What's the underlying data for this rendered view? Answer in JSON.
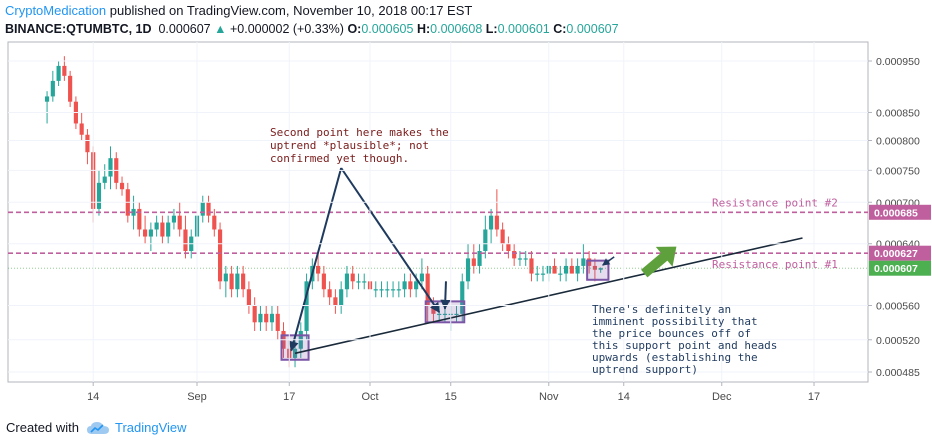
{
  "header": {
    "brand": "CryptoMedication",
    "published": "published on TradingView.com, November 10, 2018 00:17 EST",
    "symbol": "BINANCE:QTUMBTC, 1D",
    "last": "0.000607",
    "arrow": "▲",
    "change": "+0.000002 (+0.33%)",
    "o_label": "O:",
    "o_value": "0.000605",
    "h_label": "H:",
    "h_value": "0.000608",
    "l_label": "L:",
    "l_value": "0.000601",
    "c_label": "C:",
    "c_value": "0.000607"
  },
  "footer": {
    "created_with": "Created with",
    "brand": "TradingView",
    "icon": "tradingview-cloud-icon"
  },
  "colors": {
    "up": "#26a69a",
    "down": "#ef5350",
    "resistance": "#c05f9e",
    "box": "#7b55a6",
    "trend": "#1a2a3a",
    "pointer": "#1f3a5f",
    "arrow": "#5ea13c",
    "last_price": "#4caf50"
  },
  "chart_data": {
    "type": "candlestick",
    "y_ticks": [
      "0.000950",
      "0.000850",
      "0.000800",
      "0.000750",
      "0.000700",
      "0.000640",
      "0.000560",
      "0.000520",
      "0.000485"
    ],
    "y_tick_values": [
      0.00095,
      0.00085,
      0.0008,
      0.00075,
      0.0007,
      0.00064,
      0.00056,
      0.00052,
      0.000485
    ],
    "x_ticks": [
      "14",
      "Sep",
      "17",
      "Oct",
      "15",
      "Nov",
      "14",
      "Dec",
      "17"
    ],
    "x_tick_dates": [
      "2018-08-14",
      "2018-09-01",
      "2018-09-17",
      "2018-10-01",
      "2018-10-15",
      "2018-11-01",
      "2018-11-14",
      "2018-12-01",
      "2018-12-17"
    ],
    "price_labels": [
      {
        "text": "0.000685",
        "value": 0.000685,
        "color": "#c05f9e"
      },
      {
        "text": "0.000627",
        "value": 0.000627,
        "color": "#c05f9e"
      },
      {
        "text": "0.000607",
        "value": 0.000607,
        "color": "#4caf50"
      }
    ],
    "resistance_lines": [
      {
        "label": "Resistance point #2",
        "value": 0.000685
      },
      {
        "label": "Resistance point #1",
        "value": 0.000627
      }
    ],
    "annotations": {
      "second_point": [
        "Second point here makes the",
        "uptrend *plausible*; not",
        "confirmed yet though."
      ],
      "support_note": [
        "There's definitely an",
        "imminent possibility that",
        "the price bounces off of",
        "this support point and heads",
        "upwards (establishing the",
        "uptrend support)"
      ]
    },
    "trendline": {
      "from": {
        "date": "2018-09-18",
        "price": 0.000505
      },
      "to": {
        "date": "2018-12-15",
        "price": 0.000648
      }
    },
    "boxes": [
      {
        "from": "2018-09-16",
        "to": "2018-09-20",
        "low": 0.000498,
        "high": 0.000525
      },
      {
        "from": "2018-10-11",
        "to": "2018-10-17",
        "low": 0.00054,
        "high": 0.000565
      },
      {
        "from": "2018-11-08",
        "to": "2018-11-11",
        "low": 0.000592,
        "high": 0.000617
      }
    ],
    "series": [
      {
        "date": "2018-08-06",
        "open": 0.00087,
        "high": 0.00089,
        "low": 0.00083,
        "close": 0.00088
      },
      {
        "date": "2018-08-07",
        "open": 0.00088,
        "high": 0.00093,
        "low": 0.00087,
        "close": 0.00091
      },
      {
        "date": "2018-08-08",
        "open": 0.00091,
        "high": 0.00095,
        "low": 0.0009,
        "close": 0.00094
      },
      {
        "date": "2018-08-09",
        "open": 0.00094,
        "high": 0.00096,
        "low": 0.00091,
        "close": 0.00092
      },
      {
        "date": "2018-08-10",
        "open": 0.00092,
        "high": 0.00093,
        "low": 0.00086,
        "close": 0.00087
      },
      {
        "date": "2018-08-11",
        "open": 0.00087,
        "high": 0.00088,
        "low": 0.00082,
        "close": 0.00083
      },
      {
        "date": "2018-08-12",
        "open": 0.00083,
        "high": 0.00085,
        "low": 0.0008,
        "close": 0.00081
      },
      {
        "date": "2018-08-13",
        "open": 0.00081,
        "high": 0.00082,
        "low": 0.00076,
        "close": 0.00078
      },
      {
        "date": "2018-08-14",
        "open": 0.00078,
        "high": 0.00079,
        "low": 0.00067,
        "close": 0.00069
      },
      {
        "date": "2018-08-15",
        "open": 0.00069,
        "high": 0.00075,
        "low": 0.00068,
        "close": 0.00073
      },
      {
        "date": "2018-08-16",
        "open": 0.00073,
        "high": 0.00076,
        "low": 0.00072,
        "close": 0.00074
      },
      {
        "date": "2018-08-17",
        "open": 0.00074,
        "high": 0.00079,
        "low": 0.00072,
        "close": 0.00077
      },
      {
        "date": "2018-08-18",
        "open": 0.00077,
        "high": 0.00078,
        "low": 0.00072,
        "close": 0.00073
      },
      {
        "date": "2018-08-19",
        "open": 0.00073,
        "high": 0.00074,
        "low": 0.00071,
        "close": 0.00072
      },
      {
        "date": "2018-08-20",
        "open": 0.00072,
        "high": 0.00073,
        "low": 0.00067,
        "close": 0.00068
      },
      {
        "date": "2018-08-21",
        "open": 0.00068,
        "high": 0.00071,
        "low": 0.00066,
        "close": 0.00069
      },
      {
        "date": "2018-08-22",
        "open": 0.00069,
        "high": 0.0007,
        "low": 0.00065,
        "close": 0.00066
      },
      {
        "date": "2018-08-23",
        "open": 0.00066,
        "high": 0.00068,
        "low": 0.00064,
        "close": 0.00065
      },
      {
        "date": "2018-08-24",
        "open": 0.00065,
        "high": 0.00067,
        "low": 0.00063,
        "close": 0.00066
      },
      {
        "date": "2018-08-25",
        "open": 0.00066,
        "high": 0.00068,
        "low": 0.00065,
        "close": 0.00067
      },
      {
        "date": "2018-08-26",
        "open": 0.00067,
        "high": 0.00068,
        "low": 0.00064,
        "close": 0.00065
      },
      {
        "date": "2018-08-27",
        "open": 0.00065,
        "high": 0.00068,
        "low": 0.00064,
        "close": 0.00067
      },
      {
        "date": "2018-08-28",
        "open": 0.00067,
        "high": 0.00069,
        "low": 0.00066,
        "close": 0.00068
      },
      {
        "date": "2018-08-29",
        "open": 0.00068,
        "high": 0.0007,
        "low": 0.00065,
        "close": 0.00066
      },
      {
        "date": "2018-08-30",
        "open": 0.00066,
        "high": 0.00068,
        "low": 0.00062,
        "close": 0.00063
      },
      {
        "date": "2018-08-31",
        "open": 0.00063,
        "high": 0.00066,
        "low": 0.00062,
        "close": 0.00065
      },
      {
        "date": "2018-09-01",
        "open": 0.00065,
        "high": 0.0007,
        "low": 0.00064,
        "close": 0.00068
      },
      {
        "date": "2018-09-02",
        "open": 0.00068,
        "high": 0.00071,
        "low": 0.00067,
        "close": 0.0007
      },
      {
        "date": "2018-09-03",
        "open": 0.0007,
        "high": 0.00071,
        "low": 0.00067,
        "close": 0.00068
      },
      {
        "date": "2018-09-04",
        "open": 0.00068,
        "high": 0.00069,
        "low": 0.00065,
        "close": 0.00066
      },
      {
        "date": "2018-09-05",
        "open": 0.00066,
        "high": 0.00067,
        "low": 0.00058,
        "close": 0.00059
      },
      {
        "date": "2018-09-06",
        "open": 0.00059,
        "high": 0.00061,
        "low": 0.00057,
        "close": 0.0006
      },
      {
        "date": "2018-09-07",
        "open": 0.0006,
        "high": 0.00061,
        "low": 0.00057,
        "close": 0.00058
      },
      {
        "date": "2018-09-08",
        "open": 0.00058,
        "high": 0.00061,
        "low": 0.00057,
        "close": 0.0006
      },
      {
        "date": "2018-09-09",
        "open": 0.0006,
        "high": 0.00061,
        "low": 0.00057,
        "close": 0.00058
      },
      {
        "date": "2018-09-10",
        "open": 0.00058,
        "high": 0.00059,
        "low": 0.00055,
        "close": 0.00056
      },
      {
        "date": "2018-09-11",
        "open": 0.00056,
        "high": 0.00057,
        "low": 0.00053,
        "close": 0.00054
      },
      {
        "date": "2018-09-12",
        "open": 0.00054,
        "high": 0.00056,
        "low": 0.00053,
        "close": 0.00055
      },
      {
        "date": "2018-09-13",
        "open": 0.00055,
        "high": 0.00056,
        "low": 0.00053,
        "close": 0.00054
      },
      {
        "date": "2018-09-14",
        "open": 0.00054,
        "high": 0.00056,
        "low": 0.00053,
        "close": 0.00055
      },
      {
        "date": "2018-09-15",
        "open": 0.00055,
        "high": 0.00056,
        "low": 0.00052,
        "close": 0.00053
      },
      {
        "date": "2018-09-16",
        "open": 0.00053,
        "high": 0.00054,
        "low": 0.0005,
        "close": 0.00051
      },
      {
        "date": "2018-09-17",
        "open": 0.00051,
        "high": 0.00052,
        "low": 0.00049,
        "close": 0.0005
      },
      {
        "date": "2018-09-18",
        "open": 0.0005,
        "high": 0.00052,
        "low": 0.00049,
        "close": 0.00051
      },
      {
        "date": "2018-09-19",
        "open": 0.00051,
        "high": 0.00054,
        "low": 0.0005,
        "close": 0.00053
      },
      {
        "date": "2018-09-20",
        "open": 0.00053,
        "high": 0.0006,
        "low": 0.00052,
        "close": 0.00059
      },
      {
        "date": "2018-09-21",
        "open": 0.00059,
        "high": 0.00062,
        "low": 0.00058,
        "close": 0.00061
      },
      {
        "date": "2018-09-22",
        "open": 0.00061,
        "high": 0.00063,
        "low": 0.00059,
        "close": 0.0006
      },
      {
        "date": "2018-09-23",
        "open": 0.0006,
        "high": 0.00061,
        "low": 0.00057,
        "close": 0.00058
      },
      {
        "date": "2018-09-24",
        "open": 0.00058,
        "high": 0.00059,
        "low": 0.00056,
        "close": 0.00057
      },
      {
        "date": "2018-09-25",
        "open": 0.00057,
        "high": 0.00058,
        "low": 0.00055,
        "close": 0.00056
      },
      {
        "date": "2018-09-26",
        "open": 0.00056,
        "high": 0.00059,
        "low": 0.00055,
        "close": 0.00058
      },
      {
        "date": "2018-09-27",
        "open": 0.00058,
        "high": 0.00061,
        "low": 0.00057,
        "close": 0.0006
      },
      {
        "date": "2018-09-28",
        "open": 0.0006,
        "high": 0.00061,
        "low": 0.00058,
        "close": 0.00059
      },
      {
        "date": "2018-09-29",
        "open": 0.00059,
        "high": 0.0006,
        "low": 0.00058,
        "close": 0.00059
      },
      {
        "date": "2018-09-30",
        "open": 0.00059,
        "high": 0.0006,
        "low": 0.00058,
        "close": 0.00059
      },
      {
        "date": "2018-10-01",
        "open": 0.00059,
        "high": 0.0006,
        "low": 0.00058,
        "close": 0.00058
      },
      {
        "date": "2018-10-02",
        "open": 0.00058,
        "high": 0.00059,
        "low": 0.00057,
        "close": 0.00058
      },
      {
        "date": "2018-10-03",
        "open": 0.00058,
        "high": 0.00059,
        "low": 0.00057,
        "close": 0.00058
      },
      {
        "date": "2018-10-04",
        "open": 0.00058,
        "high": 0.00059,
        "low": 0.00057,
        "close": 0.00058
      },
      {
        "date": "2018-10-05",
        "open": 0.00058,
        "high": 0.00059,
        "low": 0.00057,
        "close": 0.00058
      },
      {
        "date": "2018-10-06",
        "open": 0.00058,
        "high": 0.00059,
        "low": 0.00057,
        "close": 0.00058
      },
      {
        "date": "2018-10-07",
        "open": 0.00058,
        "high": 0.0006,
        "low": 0.00057,
        "close": 0.00059
      },
      {
        "date": "2018-10-08",
        "open": 0.00059,
        "high": 0.0006,
        "low": 0.00057,
        "close": 0.00058
      },
      {
        "date": "2018-10-09",
        "open": 0.00058,
        "high": 0.0006,
        "low": 0.00057,
        "close": 0.00059
      },
      {
        "date": "2018-10-10",
        "open": 0.00059,
        "high": 0.00062,
        "low": 0.00058,
        "close": 0.0006
      },
      {
        "date": "2018-10-11",
        "open": 0.0006,
        "high": 0.00061,
        "low": 0.00054,
        "close": 0.00056
      },
      {
        "date": "2018-10-12",
        "open": 0.00056,
        "high": 0.00057,
        "low": 0.00054,
        "close": 0.00055
      },
      {
        "date": "2018-10-13",
        "open": 0.00055,
        "high": 0.00056,
        "low": 0.00054,
        "close": 0.00055
      },
      {
        "date": "2018-10-14",
        "open": 0.00055,
        "high": 0.00056,
        "low": 0.00054,
        "close": 0.00055
      },
      {
        "date": "2018-10-15",
        "open": 0.00055,
        "high": 0.00056,
        "low": 0.00053,
        "close": 0.00055
      },
      {
        "date": "2018-10-16",
        "open": 0.00055,
        "high": 0.00056,
        "low": 0.00054,
        "close": 0.00055
      },
      {
        "date": "2018-10-17",
        "open": 0.00055,
        "high": 0.0006,
        "low": 0.00054,
        "close": 0.00059
      },
      {
        "date": "2018-10-18",
        "open": 0.00059,
        "high": 0.00064,
        "low": 0.00058,
        "close": 0.00062
      },
      {
        "date": "2018-10-19",
        "open": 0.00062,
        "high": 0.00064,
        "low": 0.0006,
        "close": 0.00061
      },
      {
        "date": "2018-10-20",
        "open": 0.00061,
        "high": 0.00064,
        "low": 0.0006,
        "close": 0.00063
      },
      {
        "date": "2018-10-21",
        "open": 0.00063,
        "high": 0.00068,
        "low": 0.00062,
        "close": 0.00066
      },
      {
        "date": "2018-10-22",
        "open": 0.00066,
        "high": 0.00069,
        "low": 0.00064,
        "close": 0.00068
      },
      {
        "date": "2018-10-23",
        "open": 0.00068,
        "high": 0.00072,
        "low": 0.00065,
        "close": 0.00066
      },
      {
        "date": "2018-10-24",
        "open": 0.00066,
        "high": 0.00067,
        "low": 0.00063,
        "close": 0.00064
      },
      {
        "date": "2018-10-25",
        "open": 0.00064,
        "high": 0.00065,
        "low": 0.00062,
        "close": 0.00063
      },
      {
        "date": "2018-10-26",
        "open": 0.00063,
        "high": 0.00064,
        "low": 0.00061,
        "close": 0.00062
      },
      {
        "date": "2018-10-27",
        "open": 0.00062,
        "high": 0.00063,
        "low": 0.00061,
        "close": 0.00062
      },
      {
        "date": "2018-10-28",
        "open": 0.00062,
        "high": 0.00063,
        "low": 0.00061,
        "close": 0.00062
      },
      {
        "date": "2018-10-29",
        "open": 0.00062,
        "high": 0.00063,
        "low": 0.00059,
        "close": 0.0006
      },
      {
        "date": "2018-10-30",
        "open": 0.0006,
        "high": 0.00061,
        "low": 0.00059,
        "close": 0.0006
      },
      {
        "date": "2018-10-31",
        "open": 0.0006,
        "high": 0.00061,
        "low": 0.00059,
        "close": 0.0006
      },
      {
        "date": "2018-11-01",
        "open": 0.0006,
        "high": 0.00061,
        "low": 0.00059,
        "close": 0.00061
      },
      {
        "date": "2018-11-02",
        "open": 0.00061,
        "high": 0.00062,
        "low": 0.0006,
        "close": 0.0006
      },
      {
        "date": "2018-11-03",
        "open": 0.0006,
        "high": 0.00061,
        "low": 0.00059,
        "close": 0.0006
      },
      {
        "date": "2018-11-04",
        "open": 0.0006,
        "high": 0.00062,
        "low": 0.00059,
        "close": 0.00061
      },
      {
        "date": "2018-11-05",
        "open": 0.00061,
        "high": 0.00062,
        "low": 0.0006,
        "close": 0.0006
      },
      {
        "date": "2018-11-06",
        "open": 0.0006,
        "high": 0.00062,
        "low": 0.00059,
        "close": 0.00061
      },
      {
        "date": "2018-11-07",
        "open": 0.00061,
        "high": 0.00064,
        "low": 0.0006,
        "close": 0.00062
      },
      {
        "date": "2018-11-08",
        "open": 0.00062,
        "high": 0.00063,
        "low": 0.0006,
        "close": 0.00061
      },
      {
        "date": "2018-11-09",
        "open": 0.00061,
        "high": 0.00062,
        "low": 0.00059,
        "close": 0.000605
      },
      {
        "date": "2018-11-10",
        "open": 0.000605,
        "high": 0.000608,
        "low": 0.000601,
        "close": 0.000607
      }
    ]
  }
}
